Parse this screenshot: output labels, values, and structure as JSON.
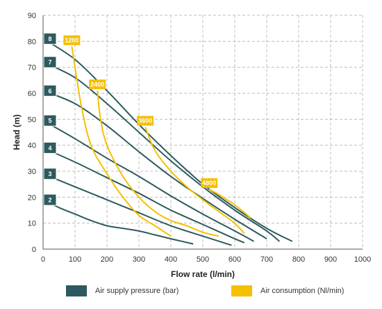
{
  "chart_data": {
    "type": "line",
    "xlabel": "Flow rate (l/min)",
    "ylabel": "Head (m)",
    "xlim": [
      0,
      1000
    ],
    "ylim": [
      0,
      90
    ],
    "xticks": [
      0,
      100,
      200,
      300,
      400,
      500,
      600,
      700,
      800,
      900,
      1000
    ],
    "yticks": [
      0,
      10,
      20,
      30,
      40,
      50,
      60,
      70,
      80,
      90
    ],
    "grid": true,
    "colors": {
      "pressure": "#2d5a5e",
      "air": "#f5c000",
      "badge_text_air": "#ffffff"
    },
    "pressure_curves": [
      {
        "label": "2",
        "points": [
          [
            0,
            19
          ],
          [
            50,
            16
          ],
          [
            100,
            13.5
          ],
          [
            150,
            11
          ],
          [
            200,
            9
          ],
          [
            250,
            8
          ],
          [
            300,
            7
          ],
          [
            350,
            5.5
          ],
          [
            400,
            4
          ],
          [
            470,
            2
          ]
        ]
      },
      {
        "label": "3",
        "points": [
          [
            0,
            29
          ],
          [
            100,
            24
          ],
          [
            200,
            19
          ],
          [
            300,
            14
          ],
          [
            400,
            9
          ],
          [
            500,
            5
          ],
          [
            590,
            1.5
          ]
        ]
      },
      {
        "label": "4",
        "points": [
          [
            0,
            39
          ],
          [
            100,
            33.5
          ],
          [
            200,
            27.5
          ],
          [
            300,
            21.5
          ],
          [
            400,
            15
          ],
          [
            500,
            9.5
          ],
          [
            600,
            4
          ],
          [
            630,
            2.5
          ]
        ]
      },
      {
        "label": "5",
        "points": [
          [
            0,
            49.5
          ],
          [
            100,
            42.5
          ],
          [
            200,
            35
          ],
          [
            300,
            28
          ],
          [
            400,
            20.5
          ],
          [
            500,
            13.5
          ],
          [
            600,
            7
          ],
          [
            660,
            3
          ]
        ]
      },
      {
        "label": "6",
        "points": [
          [
            0,
            61
          ],
          [
            100,
            56
          ],
          [
            200,
            47.5
          ],
          [
            300,
            37.5
          ],
          [
            400,
            28
          ],
          [
            500,
            19.5
          ],
          [
            600,
            11.5
          ],
          [
            700,
            4
          ]
        ]
      },
      {
        "label": "7",
        "points": [
          [
            0,
            72
          ],
          [
            100,
            66
          ],
          [
            200,
            56
          ],
          [
            300,
            45
          ],
          [
            400,
            34
          ],
          [
            500,
            24
          ],
          [
            600,
            15
          ],
          [
            700,
            7
          ],
          [
            740,
            3
          ]
        ]
      },
      {
        "label": "8",
        "points": [
          [
            0,
            81
          ],
          [
            100,
            73
          ],
          [
            200,
            61
          ],
          [
            300,
            48
          ],
          [
            400,
            36
          ],
          [
            500,
            25
          ],
          [
            600,
            16
          ],
          [
            700,
            8
          ],
          [
            780,
            3
          ]
        ]
      }
    ],
    "air_curves": [
      {
        "label": "1200",
        "points": [
          [
            90,
            78
          ],
          [
            100,
            70
          ],
          [
            120,
            55
          ],
          [
            150,
            40
          ],
          [
            200,
            29
          ],
          [
            250,
            20
          ],
          [
            300,
            13
          ],
          [
            350,
            9
          ],
          [
            400,
            5
          ]
        ]
      },
      {
        "label": "2400",
        "points": [
          [
            170,
            61
          ],
          [
            180,
            50
          ],
          [
            200,
            40
          ],
          [
            250,
            28
          ],
          [
            300,
            20
          ],
          [
            350,
            14.5
          ],
          [
            400,
            11
          ],
          [
            450,
            9
          ],
          [
            500,
            6.5
          ],
          [
            550,
            5
          ]
        ]
      },
      {
        "label": "3600",
        "points": [
          [
            320,
            47
          ],
          [
            350,
            38
          ],
          [
            400,
            30
          ],
          [
            450,
            24
          ],
          [
            500,
            19
          ],
          [
            550,
            14.5
          ],
          [
            600,
            10
          ],
          [
            630,
            6
          ]
        ]
      },
      {
        "label": "4800",
        "points": [
          [
            520,
            23
          ],
          [
            550,
            21
          ],
          [
            600,
            17
          ],
          [
            650,
            12
          ]
        ]
      }
    ],
    "legend": [
      {
        "label": "Air supply pressure (bar)",
        "color": "#2d5a5e"
      },
      {
        "label": "Air consumption (Nl/min)",
        "color": "#f5c000"
      }
    ]
  }
}
